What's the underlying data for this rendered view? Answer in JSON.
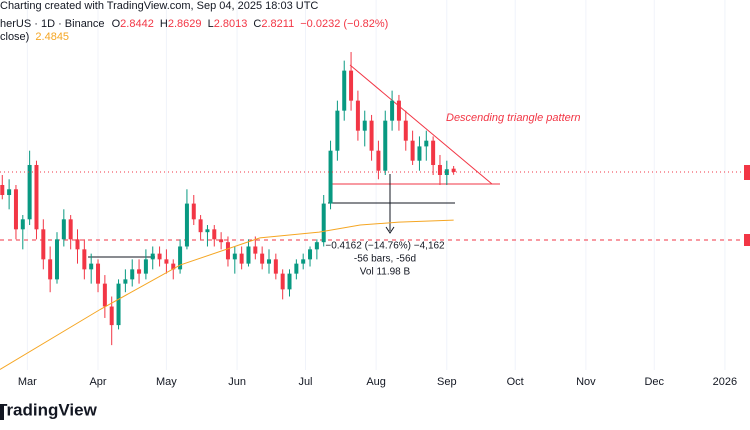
{
  "header": {
    "watermark": "Charting created with TradingView.com, Sep 04, 2025 18:03 UTC",
    "symbol": "herUS · 1D · Binance",
    "ohlc_labels": [
      "O",
      "H",
      "L",
      "C"
    ],
    "change": "−0.0232 (−0.82%)"
  },
  "chart_data": {
    "type": "candlestick",
    "xlim": [
      0,
      329
    ],
    "ylim": [
      1.436,
      4.024
    ],
    "grid": true,
    "xticks": [
      {
        "value": 12,
        "label": "Mar"
      },
      {
        "value": 43,
        "label": "Apr"
      },
      {
        "value": 73,
        "label": "May"
      },
      {
        "value": 104,
        "label": "Jun"
      },
      {
        "value": 134,
        "label": "Jul"
      },
      {
        "value": 165,
        "label": "Aug"
      },
      {
        "value": 196,
        "label": "Sep"
      },
      {
        "value": 226,
        "label": "Oct"
      },
      {
        "value": 257,
        "label": "Nov"
      },
      {
        "value": 287,
        "label": "Dec"
      },
      {
        "value": 318,
        "label": "2026"
      }
    ],
    "up_color": "#089981",
    "down_color": "#f23645",
    "x": [
      1,
      4,
      7,
      10,
      13,
      16,
      19,
      22,
      25,
      28,
      31,
      34,
      37,
      40,
      43,
      46,
      49,
      52,
      55,
      58,
      61,
      64,
      67,
      70,
      73,
      76,
      79,
      82,
      85,
      88,
      91,
      94,
      97,
      100,
      103,
      106,
      109,
      112,
      115,
      118,
      121,
      124,
      127,
      130,
      133,
      136,
      139,
      142,
      145,
      148,
      151,
      154,
      157,
      160,
      163,
      166,
      169,
      172,
      175,
      178,
      181,
      184,
      187,
      190,
      193,
      196,
      199
    ],
    "open": [
      2.73,
      2.66,
      2.7,
      2.42,
      2.49,
      2.87,
      2.42,
      2.21,
      2.07,
      2.35,
      2.49,
      2.35,
      2.28,
      2.14,
      2.18,
      2.04,
      1.88,
      1.75,
      2.04,
      2.07,
      2.14,
      2.11,
      2.21,
      2.25,
      2.21,
      2.18,
      2.14,
      2.3,
      2.6,
      2.49,
      2.4,
      2.42,
      2.35,
      2.33,
      2.21,
      2.25,
      2.18,
      2.3,
      2.25,
      2.18,
      2.21,
      2.11,
      2.0,
      2.11,
      2.18,
      2.21,
      2.28,
      2.33,
      2.6,
      2.97,
      3.25,
      3.53,
      3.32,
      3.11,
      3.18,
      2.97,
      2.83,
      3.18,
      3.32,
      3.18,
      3.04,
      2.9,
      3.0,
      3.04,
      2.87,
      2.8,
      2.8442
    ],
    "high": [
      2.8,
      2.77,
      2.73,
      2.52,
      2.97,
      2.9,
      2.49,
      2.3,
      2.4,
      2.56,
      2.52,
      2.42,
      2.35,
      2.25,
      2.21,
      2.1,
      1.95,
      2.07,
      2.14,
      2.21,
      2.21,
      2.28,
      2.3,
      2.3,
      2.28,
      2.21,
      2.35,
      2.7,
      2.66,
      2.52,
      2.45,
      2.45,
      2.4,
      2.37,
      2.3,
      2.3,
      2.35,
      2.37,
      2.3,
      2.28,
      2.25,
      2.14,
      2.14,
      2.21,
      2.25,
      2.3,
      2.35,
      2.66,
      3.04,
      3.32,
      3.6,
      3.66,
      3.39,
      3.25,
      3.22,
      3.04,
      3.25,
      3.39,
      3.36,
      3.25,
      3.11,
      3.07,
      3.11,
      3.07,
      2.94,
      2.9,
      2.8629
    ],
    "low": [
      2.63,
      2.56,
      2.35,
      2.28,
      2.45,
      2.35,
      2.14,
      1.98,
      2.04,
      2.3,
      2.28,
      2.18,
      2.07,
      2.04,
      1.98,
      1.8,
      1.61,
      1.72,
      1.98,
      2.02,
      2.04,
      2.07,
      2.14,
      2.16,
      2.11,
      2.07,
      2.11,
      2.28,
      2.45,
      2.35,
      2.3,
      2.3,
      2.28,
      2.16,
      2.11,
      2.14,
      2.16,
      2.21,
      2.14,
      2.11,
      2.07,
      1.93,
      1.95,
      2.07,
      2.14,
      2.16,
      2.21,
      2.3,
      2.56,
      2.9,
      3.18,
      3.25,
      3.04,
      3.0,
      2.9,
      2.77,
      2.8,
      3.11,
      3.11,
      2.97,
      2.87,
      2.83,
      2.9,
      2.8,
      2.73,
      2.73,
      2.8013
    ],
    "close": [
      2.66,
      2.7,
      2.42,
      2.49,
      2.87,
      2.42,
      2.21,
      2.07,
      2.35,
      2.49,
      2.35,
      2.28,
      2.14,
      2.18,
      2.04,
      1.88,
      1.75,
      2.04,
      2.07,
      2.14,
      2.11,
      2.21,
      2.25,
      2.21,
      2.18,
      2.14,
      2.3,
      2.6,
      2.49,
      2.4,
      2.42,
      2.35,
      2.33,
      2.21,
      2.25,
      2.18,
      2.3,
      2.25,
      2.18,
      2.21,
      2.11,
      2.0,
      2.11,
      2.18,
      2.21,
      2.28,
      2.33,
      2.6,
      2.97,
      3.25,
      3.53,
      3.32,
      3.11,
      3.18,
      2.97,
      2.83,
      3.18,
      3.32,
      3.18,
      3.04,
      2.9,
      3.0,
      3.04,
      2.87,
      2.8,
      2.84,
      2.8211
    ],
    "ma": {
      "label": "close)",
      "color": "#f5a623",
      "x": [
        0,
        44,
        79,
        114,
        140,
        158,
        175,
        199
      ],
      "values": [
        1.44,
        1.86,
        2.17,
        2.36,
        2.4,
        2.45,
        2.47,
        2.4845
      ]
    },
    "annotations": {
      "pattern": "Descending triangle pattern",
      "measure": [
        "−0.4162 (−14.76%) −4,162",
        "-56 bars, -56d",
        "Vol 11.98 B"
      ]
    },
    "logo": "TradingView"
  }
}
